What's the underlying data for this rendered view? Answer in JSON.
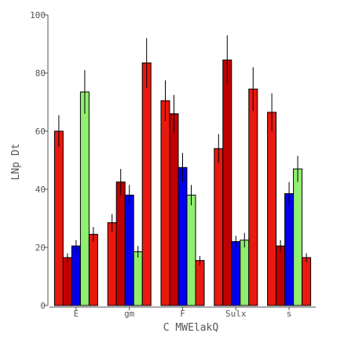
{
  "chart_data": {
    "type": "bar",
    "title": "",
    "xlabel": "C MWElakQ",
    "ylabel": "LNp Dt",
    "categories": [
      "E",
      "gm",
      "F",
      "Sulx",
      "s"
    ],
    "ylim": [
      0,
      100
    ],
    "yticks": [
      0,
      20,
      40,
      60,
      80,
      100
    ],
    "grid": false,
    "series": [
      {
        "color": "#e8190f",
        "values": [
          60,
          28.5,
          70.5,
          54,
          66.5
        ],
        "errors": [
          5.5,
          3,
          7,
          5,
          6.5
        ]
      },
      {
        "color": "#c00000",
        "values": [
          16.5,
          42.5,
          66,
          84.5,
          20.5
        ],
        "errors": [
          1.5,
          4.5,
          6.5,
          8.5,
          2
        ]
      },
      {
        "color": "#0000ee",
        "values": [
          20.5,
          38,
          47.5,
          22,
          38.5
        ],
        "errors": [
          2,
          3.5,
          5,
          2,
          4
        ]
      },
      {
        "color": "#90ee70",
        "values": [
          73.5,
          18.5,
          38,
          22.5,
          47
        ],
        "errors": [
          7.5,
          2,
          3.5,
          2.5,
          4.5
        ]
      },
      {
        "color": "#e8190f",
        "values": [
          24.5,
          83.5,
          15.5,
          74.5,
          16.5
        ],
        "errors": [
          2.5,
          8.5,
          1.5,
          7.5,
          1.5
        ]
      }
    ]
  }
}
